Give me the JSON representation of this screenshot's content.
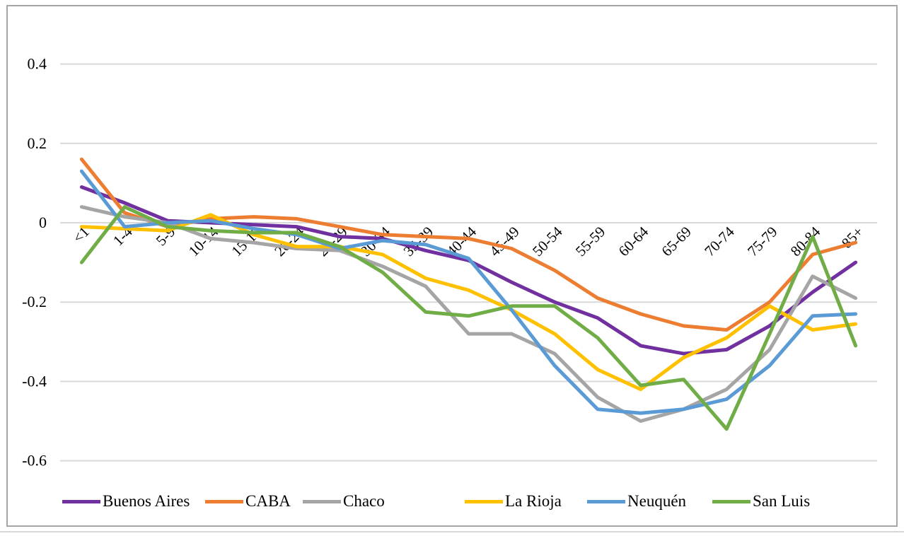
{
  "colors": {
    "background": "#FFFFFF",
    "frame_border": "#A6A6A6",
    "gridline": "#D9D9D9",
    "text": "#000000"
  },
  "chart_data": {
    "type": "line",
    "title": "",
    "xlabel": "",
    "ylabel": "",
    "grid": true,
    "legend_position": "bottom",
    "ylim": [
      -0.6,
      0.4
    ],
    "y_ticks": [
      0.4,
      0.2,
      0,
      -0.2,
      -0.4,
      -0.6
    ],
    "y_tick_labels": [
      "0.4",
      "0.2",
      "0",
      "-0.2",
      "-0.4",
      "-0.6"
    ],
    "categories": [
      "<1",
      "1-4",
      "5-9",
      "10-14",
      "15-19",
      "20-24",
      "25-29",
      "30-34",
      "35-39",
      "40-44",
      "45-49",
      "50-54",
      "55-59",
      "60-64",
      "65-69",
      "70-74",
      "75-79",
      "80-84",
      "85+"
    ],
    "series": [
      {
        "name": "Buenos Aires",
        "color": "#7030A0",
        "values": [
          0.09,
          0.05,
          0.005,
          0.0,
          -0.005,
          -0.01,
          -0.035,
          -0.04,
          -0.07,
          -0.095,
          -0.15,
          -0.2,
          -0.24,
          -0.31,
          -0.33,
          -0.32,
          -0.26,
          -0.175,
          -0.1
        ]
      },
      {
        "name": "CABA",
        "color": "#ED7D31",
        "values": [
          0.16,
          0.025,
          -0.01,
          0.01,
          0.015,
          0.01,
          -0.01,
          -0.03,
          -0.035,
          -0.04,
          -0.065,
          -0.12,
          -0.19,
          -0.23,
          -0.26,
          -0.27,
          -0.2,
          -0.08,
          -0.05
        ]
      },
      {
        "name": "Chaco",
        "color": "#A5A5A5",
        "values": [
          0.04,
          0.015,
          0.0,
          -0.04,
          -0.05,
          -0.065,
          -0.07,
          -0.11,
          -0.16,
          -0.28,
          -0.28,
          -0.33,
          -0.44,
          -0.5,
          -0.47,
          -0.42,
          -0.32,
          -0.135,
          -0.19
        ]
      },
      {
        "name": "La Rioja",
        "color": "#FFC000",
        "values": [
          -0.01,
          -0.015,
          -0.02,
          0.02,
          -0.03,
          -0.06,
          -0.06,
          -0.08,
          -0.14,
          -0.17,
          -0.22,
          -0.28,
          -0.37,
          -0.42,
          -0.34,
          -0.29,
          -0.21,
          -0.27,
          -0.255
        ]
      },
      {
        "name": "Neuquén",
        "color": "#5B9BD5",
        "values": [
          0.13,
          -0.01,
          0.0,
          0.005,
          -0.015,
          -0.03,
          -0.065,
          -0.045,
          -0.055,
          -0.09,
          -0.22,
          -0.36,
          -0.47,
          -0.48,
          -0.47,
          -0.445,
          -0.36,
          -0.235,
          -0.23
        ]
      },
      {
        "name": "San Luis",
        "color": "#70AD47",
        "values": [
          -0.1,
          0.04,
          -0.01,
          -0.02,
          -0.025,
          -0.025,
          -0.06,
          -0.125,
          -0.225,
          -0.235,
          -0.21,
          -0.21,
          -0.29,
          -0.41,
          -0.395,
          -0.52,
          -0.28,
          -0.035,
          -0.31
        ]
      }
    ]
  }
}
